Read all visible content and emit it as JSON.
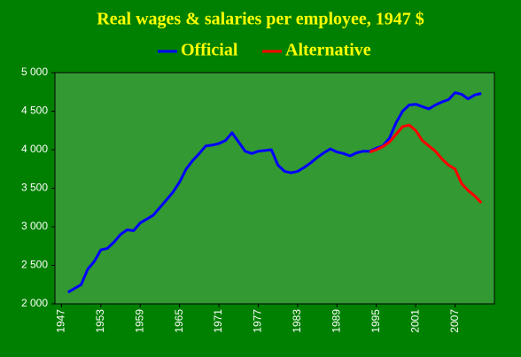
{
  "chart_data": {
    "type": "line",
    "title": "Real wages & salaries per employee, 1947 $",
    "x": [
      1948,
      1949,
      1950,
      1951,
      1952,
      1953,
      1954,
      1955,
      1956,
      1957,
      1958,
      1959,
      1960,
      1961,
      1962,
      1963,
      1964,
      1965,
      1966,
      1967,
      1968,
      1969,
      1970,
      1971,
      1972,
      1973,
      1974,
      1975,
      1976,
      1977,
      1978,
      1979,
      1980,
      1981,
      1982,
      1983,
      1984,
      1985,
      1986,
      1987,
      1988,
      1989,
      1990,
      1991,
      1992,
      1993,
      1994,
      1995,
      1996,
      1997,
      1998,
      1999,
      2000,
      2001,
      2002,
      2003,
      2004,
      2005,
      2006,
      2007,
      2008,
      2009,
      2010,
      2011
    ],
    "series": [
      {
        "name": "Official",
        "color": "#0000ff",
        "values": [
          2150,
          2200,
          2250,
          2450,
          2550,
          2700,
          2720,
          2800,
          2900,
          2960,
          2950,
          3050,
          3100,
          3150,
          3250,
          3350,
          3450,
          3580,
          3750,
          3860,
          3950,
          4050,
          4060,
          4080,
          4120,
          4220,
          4100,
          3980,
          3950,
          3980,
          3990,
          4000,
          3800,
          3720,
          3700,
          3720,
          3770,
          3830,
          3900,
          3960,
          4010,
          3970,
          3950,
          3920,
          3960,
          3980,
          3980,
          4020,
          4050,
          4150,
          4350,
          4500,
          4580,
          4590,
          4560,
          4530,
          4580,
          4620,
          4650,
          4740,
          4720,
          4660,
          4710,
          4730
        ]
      },
      {
        "name": "Alternative",
        "color": "#ff0000",
        "values": [
          null,
          null,
          null,
          null,
          null,
          null,
          null,
          null,
          null,
          null,
          null,
          null,
          null,
          null,
          null,
          null,
          null,
          null,
          null,
          null,
          null,
          null,
          null,
          null,
          null,
          null,
          null,
          null,
          null,
          null,
          null,
          null,
          null,
          null,
          null,
          null,
          null,
          null,
          null,
          null,
          null,
          null,
          null,
          null,
          null,
          null,
          3970,
          4000,
          4040,
          4100,
          4200,
          4300,
          4320,
          4250,
          4120,
          4050,
          3980,
          3880,
          3800,
          3750,
          3560,
          3470,
          3400,
          3310
        ]
      }
    ],
    "xlim": [
      1946,
      2013
    ],
    "xticks": [
      1947,
      1953,
      1959,
      1965,
      1971,
      1977,
      1983,
      1989,
      1995,
      2001,
      2007
    ],
    "ylim": [
      2000,
      5000
    ],
    "yticks": [
      {
        "value": 2000,
        "label": "2 000"
      },
      {
        "value": 2500,
        "label": "2 500"
      },
      {
        "value": 3000,
        "label": "3 000"
      },
      {
        "value": 3500,
        "label": "3 500"
      },
      {
        "value": 4000,
        "label": "4 000"
      },
      {
        "value": 4500,
        "label": "4 500"
      },
      {
        "value": 5000,
        "label": "5 000"
      }
    ],
    "grid": false
  }
}
